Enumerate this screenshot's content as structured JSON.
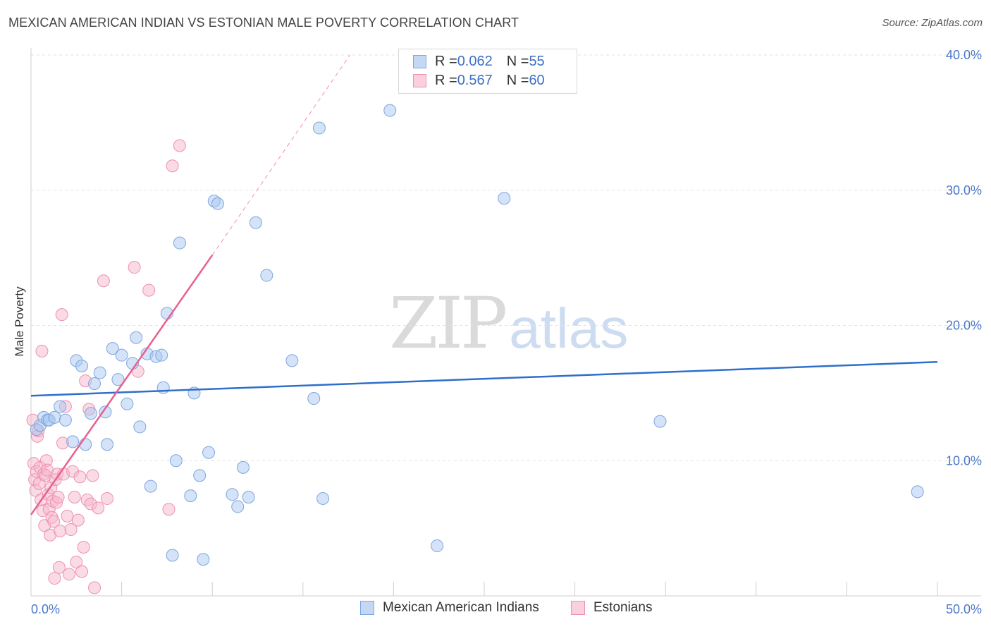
{
  "title": "MEXICAN AMERICAN INDIAN VS ESTONIAN MALE POVERTY CORRELATION CHART",
  "source": "Source: ZipAtlas.com",
  "watermark": {
    "zip": "ZIP",
    "atlas": "atlas"
  },
  "legend": {
    "series1": {
      "r_label": "R = ",
      "r_value": "0.062",
      "n_label": "N = ",
      "n_value": "55"
    },
    "series2": {
      "r_label": "R = ",
      "r_value": "0.567",
      "n_label": "N = ",
      "n_value": "60"
    }
  },
  "bottom_legend": {
    "series1": "Mexican American Indians",
    "series2": "Estonians"
  },
  "colors": {
    "blue_fill": "#aac8f0",
    "blue_stroke": "#7ea6e0",
    "blue_line": "#2e6fcc",
    "pink_fill": "#f6b8cc",
    "pink_stroke": "#ee90b0",
    "pink_line": "#e8608e",
    "tick_text": "#4a78c8",
    "grid": "#e2e2e2"
  },
  "chart_data": {
    "type": "scatter",
    "title": "MEXICAN AMERICAN INDIAN VS ESTONIAN MALE POVERTY CORRELATION CHART",
    "xlabel": "",
    "ylabel": "Male Poverty",
    "xlim": [
      0,
      50
    ],
    "ylim": [
      0,
      40
    ],
    "x_tick_labels": [
      "0.0%",
      "50.0%"
    ],
    "y_ticks": [
      10,
      20,
      30,
      40
    ],
    "y_tick_labels": [
      "10.0%",
      "20.0%",
      "30.0%",
      "40.0%"
    ],
    "series": [
      {
        "name": "Mexican American Indians",
        "r": 0.062,
        "n": 55,
        "trend": {
          "x": [
            0,
            50
          ],
          "y": [
            14.8,
            17.3
          ]
        },
        "points": [
          [
            0.3,
            12.3
          ],
          [
            0.5,
            12.6
          ],
          [
            0.7,
            13.2
          ],
          [
            0.9,
            13.0
          ],
          [
            1.0,
            13.0
          ],
          [
            1.3,
            13.2
          ],
          [
            1.6,
            14.0
          ],
          [
            1.9,
            13.0
          ],
          [
            2.3,
            11.4
          ],
          [
            2.5,
            17.4
          ],
          [
            2.8,
            17.0
          ],
          [
            3.0,
            11.2
          ],
          [
            3.3,
            13.5
          ],
          [
            3.5,
            15.7
          ],
          [
            3.8,
            16.5
          ],
          [
            4.1,
            13.6
          ],
          [
            4.2,
            11.2
          ],
          [
            4.5,
            18.3
          ],
          [
            4.8,
            16.0
          ],
          [
            5.0,
            17.8
          ],
          [
            5.3,
            14.2
          ],
          [
            5.6,
            17.2
          ],
          [
            5.8,
            19.1
          ],
          [
            6.0,
            12.5
          ],
          [
            6.4,
            17.9
          ],
          [
            6.6,
            8.1
          ],
          [
            6.9,
            17.7
          ],
          [
            7.2,
            17.8
          ],
          [
            7.3,
            15.4
          ],
          [
            7.5,
            20.9
          ],
          [
            7.8,
            3.0
          ],
          [
            8.0,
            10.0
          ],
          [
            8.2,
            26.1
          ],
          [
            8.8,
            7.4
          ],
          [
            9.0,
            15.0
          ],
          [
            9.3,
            8.9
          ],
          [
            9.5,
            2.7
          ],
          [
            9.8,
            10.6
          ],
          [
            10.1,
            29.2
          ],
          [
            10.3,
            29.0
          ],
          [
            11.1,
            7.5
          ],
          [
            11.4,
            6.6
          ],
          [
            11.7,
            9.5
          ],
          [
            12.0,
            7.3
          ],
          [
            12.4,
            27.6
          ],
          [
            13.0,
            23.7
          ],
          [
            14.4,
            17.4
          ],
          [
            15.6,
            14.6
          ],
          [
            15.9,
            34.6
          ],
          [
            16.1,
            7.2
          ],
          [
            19.8,
            35.9
          ],
          [
            22.4,
            3.7
          ],
          [
            26.1,
            29.4
          ],
          [
            34.7,
            12.9
          ],
          [
            48.9,
            7.7
          ]
        ]
      },
      {
        "name": "Estonians",
        "r": 0.567,
        "n": 60,
        "trend": {
          "x": [
            0,
            10
          ],
          "y": [
            6.0,
            25.2
          ]
        },
        "trend_extension": {
          "x": [
            10,
            17.6
          ],
          "y": [
            25.2,
            40.0
          ]
        },
        "points": [
          [
            0.1,
            13.0
          ],
          [
            0.15,
            9.8
          ],
          [
            0.2,
            8.6
          ],
          [
            0.25,
            7.8
          ],
          [
            0.3,
            9.2
          ],
          [
            0.35,
            11.8
          ],
          [
            0.4,
            12.2
          ],
          [
            0.45,
            8.3
          ],
          [
            0.5,
            9.5
          ],
          [
            0.55,
            7.1
          ],
          [
            0.6,
            18.1
          ],
          [
            0.65,
            6.3
          ],
          [
            0.7,
            9.0
          ],
          [
            0.75,
            5.2
          ],
          [
            0.8,
            8.9
          ],
          [
            0.85,
            10.0
          ],
          [
            0.9,
            9.3
          ],
          [
            0.95,
            7.5
          ],
          [
            1.0,
            6.4
          ],
          [
            1.05,
            4.5
          ],
          [
            1.1,
            8.0
          ],
          [
            1.15,
            5.8
          ],
          [
            1.2,
            7.0
          ],
          [
            1.25,
            5.5
          ],
          [
            1.3,
            1.3
          ],
          [
            1.35,
            8.6
          ],
          [
            1.4,
            6.9
          ],
          [
            1.45,
            9.0
          ],
          [
            1.5,
            7.3
          ],
          [
            1.55,
            2.1
          ],
          [
            1.6,
            4.8
          ],
          [
            1.7,
            20.8
          ],
          [
            1.75,
            11.3
          ],
          [
            1.8,
            9.0
          ],
          [
            1.9,
            14.0
          ],
          [
            2.0,
            5.9
          ],
          [
            2.1,
            1.6
          ],
          [
            2.2,
            4.9
          ],
          [
            2.3,
            9.2
          ],
          [
            2.4,
            7.3
          ],
          [
            2.5,
            2.5
          ],
          [
            2.6,
            5.6
          ],
          [
            2.7,
            8.8
          ],
          [
            2.8,
            1.8
          ],
          [
            2.9,
            3.6
          ],
          [
            3.0,
            15.9
          ],
          [
            3.1,
            7.1
          ],
          [
            3.2,
            13.8
          ],
          [
            3.3,
            6.8
          ],
          [
            3.4,
            8.9
          ],
          [
            3.5,
            0.6
          ],
          [
            3.7,
            6.5
          ],
          [
            4.0,
            23.3
          ],
          [
            4.2,
            7.2
          ],
          [
            5.7,
            24.3
          ],
          [
            5.9,
            16.6
          ],
          [
            6.5,
            22.6
          ],
          [
            7.6,
            6.4
          ],
          [
            7.8,
            31.8
          ],
          [
            8.2,
            33.3
          ]
        ]
      }
    ]
  }
}
